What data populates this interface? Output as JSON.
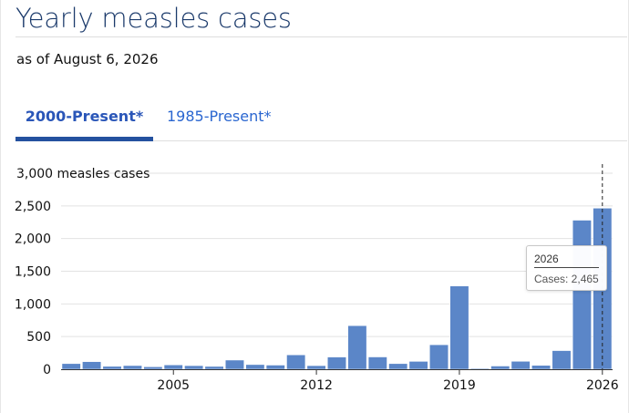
{
  "header": {
    "title": "Yearly measles cases",
    "as_of": "as of August 6, 2026"
  },
  "tabs": [
    {
      "label": "2000-Present*",
      "active": true
    },
    {
      "label": "1985-Present*",
      "active": false
    }
  ],
  "colors": {
    "bar": "#5b86c8",
    "bar_stroke": "#ffffff",
    "accent": "#24519f",
    "title": "#1b3a6b"
  },
  "chart_data": {
    "type": "bar",
    "title": "",
    "ylabel": "measles cases",
    "xlabel": "",
    "ylim": [
      0,
      3000
    ],
    "y_ticks": [
      0,
      500,
      1000,
      1500,
      2000,
      2500,
      3000
    ],
    "y_tick_labels": [
      "0",
      "500",
      "1,000",
      "1,500",
      "2,000",
      "2,500",
      "3,000 measles cases"
    ],
    "x_tick_labels": [
      "2005",
      "2012",
      "2019",
      "2026"
    ],
    "grid": true,
    "categories": [
      "2000",
      "2001",
      "2002",
      "2003",
      "2004",
      "2005",
      "2006",
      "2007",
      "2008",
      "2009",
      "2010",
      "2011",
      "2012",
      "2013",
      "2014",
      "2015",
      "2016",
      "2017",
      "2018",
      "2019",
      "2020",
      "2021",
      "2022",
      "2023",
      "2024",
      "2025",
      "2026"
    ],
    "values": [
      86,
      116,
      44,
      56,
      37,
      66,
      55,
      43,
      140,
      71,
      63,
      220,
      55,
      187,
      667,
      188,
      86,
      120,
      375,
      1274,
      13,
      49,
      121,
      59,
      285,
      2281,
      2465
    ],
    "highlight": {
      "category": "2026",
      "tooltip_title": "2026",
      "tooltip_text": "Cases: 2,465"
    }
  }
}
